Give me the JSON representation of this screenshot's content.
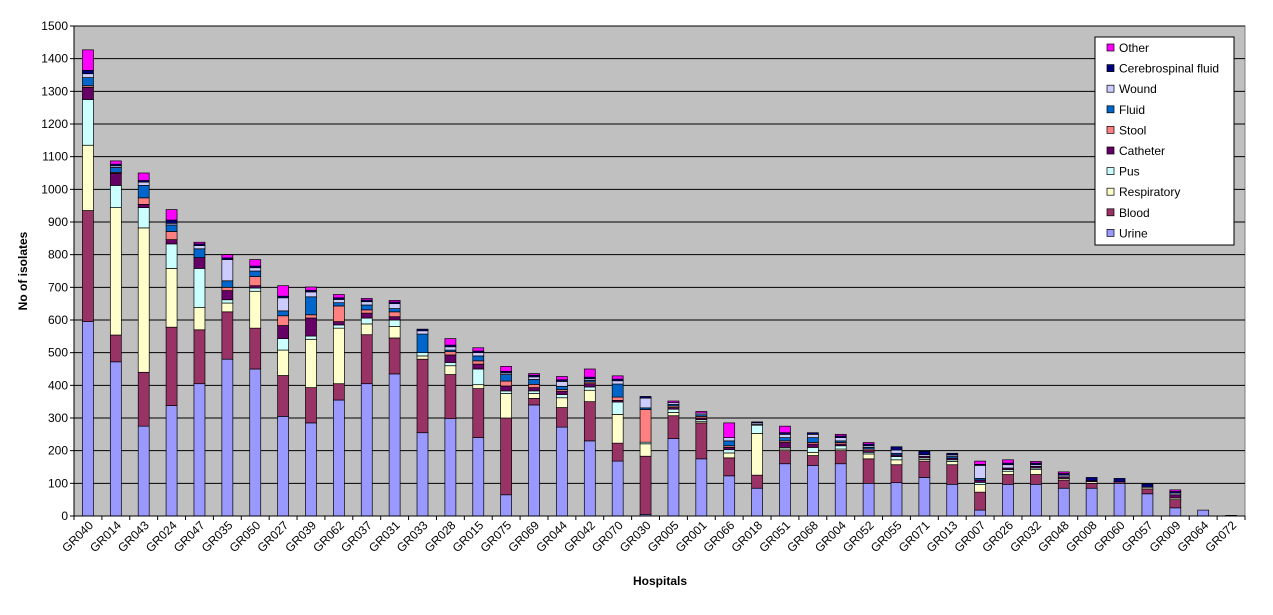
{
  "chart_data": {
    "type": "bar",
    "stacked": true,
    "xlabel": "Hospitals",
    "ylabel": "No of isolates",
    "ylim": [
      0,
      1500
    ],
    "yticks": [
      0,
      100,
      200,
      300,
      400,
      500,
      600,
      700,
      800,
      900,
      1000,
      1100,
      1200,
      1300,
      1400,
      1500
    ],
    "grid": true,
    "legend_position": "top-right",
    "background_color": "#C0C0C0",
    "categories": [
      "GR040",
      "GR014",
      "GR043",
      "GR024",
      "GR047",
      "GR035",
      "GR050",
      "GR027",
      "GR039",
      "GR062",
      "GR037",
      "GR031",
      "GR033",
      "GR028",
      "GR015",
      "GR075",
      "GR069",
      "GR044",
      "GR042",
      "GR070",
      "GR030",
      "GR005",
      "GR001",
      "GR066",
      "GR018",
      "GR051",
      "GR068",
      "GR004",
      "GR052",
      "GR055",
      "GR071",
      "GR013",
      "GR007",
      "GR026",
      "GR032",
      "GR048",
      "GR008",
      "GR060",
      "GR057",
      "GR009",
      "GR064",
      "GR072"
    ],
    "x_tick_labels": [
      "GR040",
      "GR014",
      "GR043",
      "GR024",
      "GR047",
      "GR035",
      "GR050",
      "GR027",
      "GR039",
      "GR062",
      "GR037",
      "GR031",
      "GR033",
      "GR028",
      "GR015",
      "GR075",
      "GR069",
      "GR044",
      "GR042",
      "GR070",
      "GR030",
      "GR005",
      "GR001",
      "GR066",
      "GR018",
      "GR051",
      "GR068",
      "GR004",
      "GR052",
      "GR055",
      "GR071",
      "GR013",
      "GR007",
      "GR026",
      "GR032",
      "GR048",
      "GR008",
      "GR060",
      "GR057",
      "GR009",
      "GR064",
      "GR072"
    ],
    "series": [
      {
        "name": "Urine",
        "color": "#9999FF",
        "values": [
          595,
          472,
          275,
          338,
          405,
          480,
          450,
          305,
          285,
          355,
          405,
          435,
          255,
          298,
          240,
          65,
          340,
          272,
          230,
          168,
          5,
          237,
          175,
          123,
          85,
          160,
          155,
          160,
          100,
          102,
          118,
          97,
          18,
          97,
          97,
          85,
          85,
          100,
          68,
          25,
          18,
          2
        ]
      },
      {
        "name": "Blood",
        "color": "#993366",
        "values": [
          340,
          82,
          165,
          240,
          165,
          145,
          125,
          125,
          108,
          50,
          150,
          110,
          225,
          135,
          150,
          235,
          20,
          60,
          120,
          55,
          178,
          70,
          110,
          55,
          40,
          40,
          30,
          40,
          75,
          55,
          50,
          60,
          55,
          30,
          30,
          25,
          15,
          5,
          15,
          25,
          0,
          0
        ]
      },
      {
        "name": "Respiratory",
        "color": "#FFFFCC",
        "values": [
          200,
          390,
          442,
          180,
          68,
          27,
          113,
          78,
          148,
          170,
          33,
          35,
          10,
          27,
          12,
          75,
          15,
          30,
          35,
          88,
          38,
          10,
          5,
          15,
          128,
          5,
          10,
          5,
          15,
          15,
          5,
          10,
          23,
          10,
          15,
          5,
          5,
          0,
          5,
          5,
          0,
          0
        ]
      },
      {
        "name": "Pus",
        "color": "#CCFFFF",
        "values": [
          140,
          68,
          62,
          75,
          120,
          10,
          10,
          35,
          10,
          10,
          18,
          20,
          10,
          10,
          48,
          8,
          8,
          10,
          10,
          38,
          5,
          10,
          5,
          10,
          25,
          5,
          15,
          10,
          5,
          10,
          5,
          5,
          7,
          5,
          5,
          0,
          0,
          0,
          0,
          0,
          0,
          0
        ]
      },
      {
        "name": "Catheter",
        "color": "#660066",
        "values": [
          37,
          37,
          10,
          13,
          33,
          28,
          7,
          40,
          55,
          10,
          15,
          10,
          0,
          23,
          15,
          15,
          10,
          10,
          10,
          5,
          0,
          5,
          5,
          7,
          2,
          15,
          10,
          5,
          5,
          5,
          5,
          5,
          7,
          5,
          5,
          5,
          3,
          0,
          0,
          10,
          0,
          0
        ]
      },
      {
        "name": "Stool",
        "color": "#FF8080",
        "values": [
          5,
          3,
          20,
          25,
          0,
          10,
          28,
          30,
          10,
          48,
          10,
          15,
          0,
          10,
          10,
          15,
          10,
          5,
          5,
          10,
          100,
          5,
          5,
          5,
          0,
          5,
          5,
          5,
          5,
          0,
          0,
          0,
          0,
          0,
          0,
          0,
          0,
          0,
          0,
          0,
          0,
          0
        ]
      },
      {
        "name": "Fluid",
        "color": "#0066CC",
        "values": [
          25,
          15,
          38,
          20,
          27,
          20,
          17,
          15,
          55,
          10,
          15,
          10,
          57,
          5,
          15,
          20,
          15,
          10,
          5,
          40,
          5,
          5,
          5,
          15,
          0,
          10,
          15,
          5,
          5,
          5,
          0,
          5,
          5,
          0,
          0,
          0,
          0,
          0,
          0,
          0,
          0,
          0
        ]
      },
      {
        "name": "Wound",
        "color": "#CCCCFF",
        "values": [
          12,
          5,
          10,
          5,
          10,
          65,
          10,
          40,
          15,
          10,
          10,
          15,
          10,
          10,
          10,
          5,
          8,
          15,
          5,
          10,
          30,
          5,
          5,
          10,
          5,
          10,
          10,
          10,
          5,
          10,
          5,
          5,
          40,
          10,
          5,
          5,
          0,
          0,
          0,
          5,
          0,
          0
        ]
      },
      {
        "name": "Cerebrospinal fluid",
        "color": "#000080",
        "values": [
          10,
          5,
          5,
          10,
          5,
          5,
          5,
          5,
          5,
          5,
          5,
          5,
          5,
          5,
          5,
          5,
          5,
          5,
          5,
          5,
          5,
          0,
          0,
          0,
          3,
          5,
          5,
          5,
          5,
          10,
          10,
          5,
          3,
          5,
          5,
          5,
          10,
          10,
          10,
          5,
          0,
          0
        ]
      },
      {
        "name": "Other",
        "color": "#FF00FF",
        "values": [
          63,
          10,
          23,
          32,
          5,
          10,
          20,
          32,
          10,
          10,
          5,
          5,
          0,
          20,
          10,
          15,
          5,
          10,
          25,
          10,
          0,
          5,
          5,
          45,
          0,
          20,
          0,
          5,
          5,
          0,
          0,
          0,
          10,
          10,
          5,
          5,
          0,
          0,
          0,
          5,
          0,
          0
        ]
      }
    ]
  }
}
